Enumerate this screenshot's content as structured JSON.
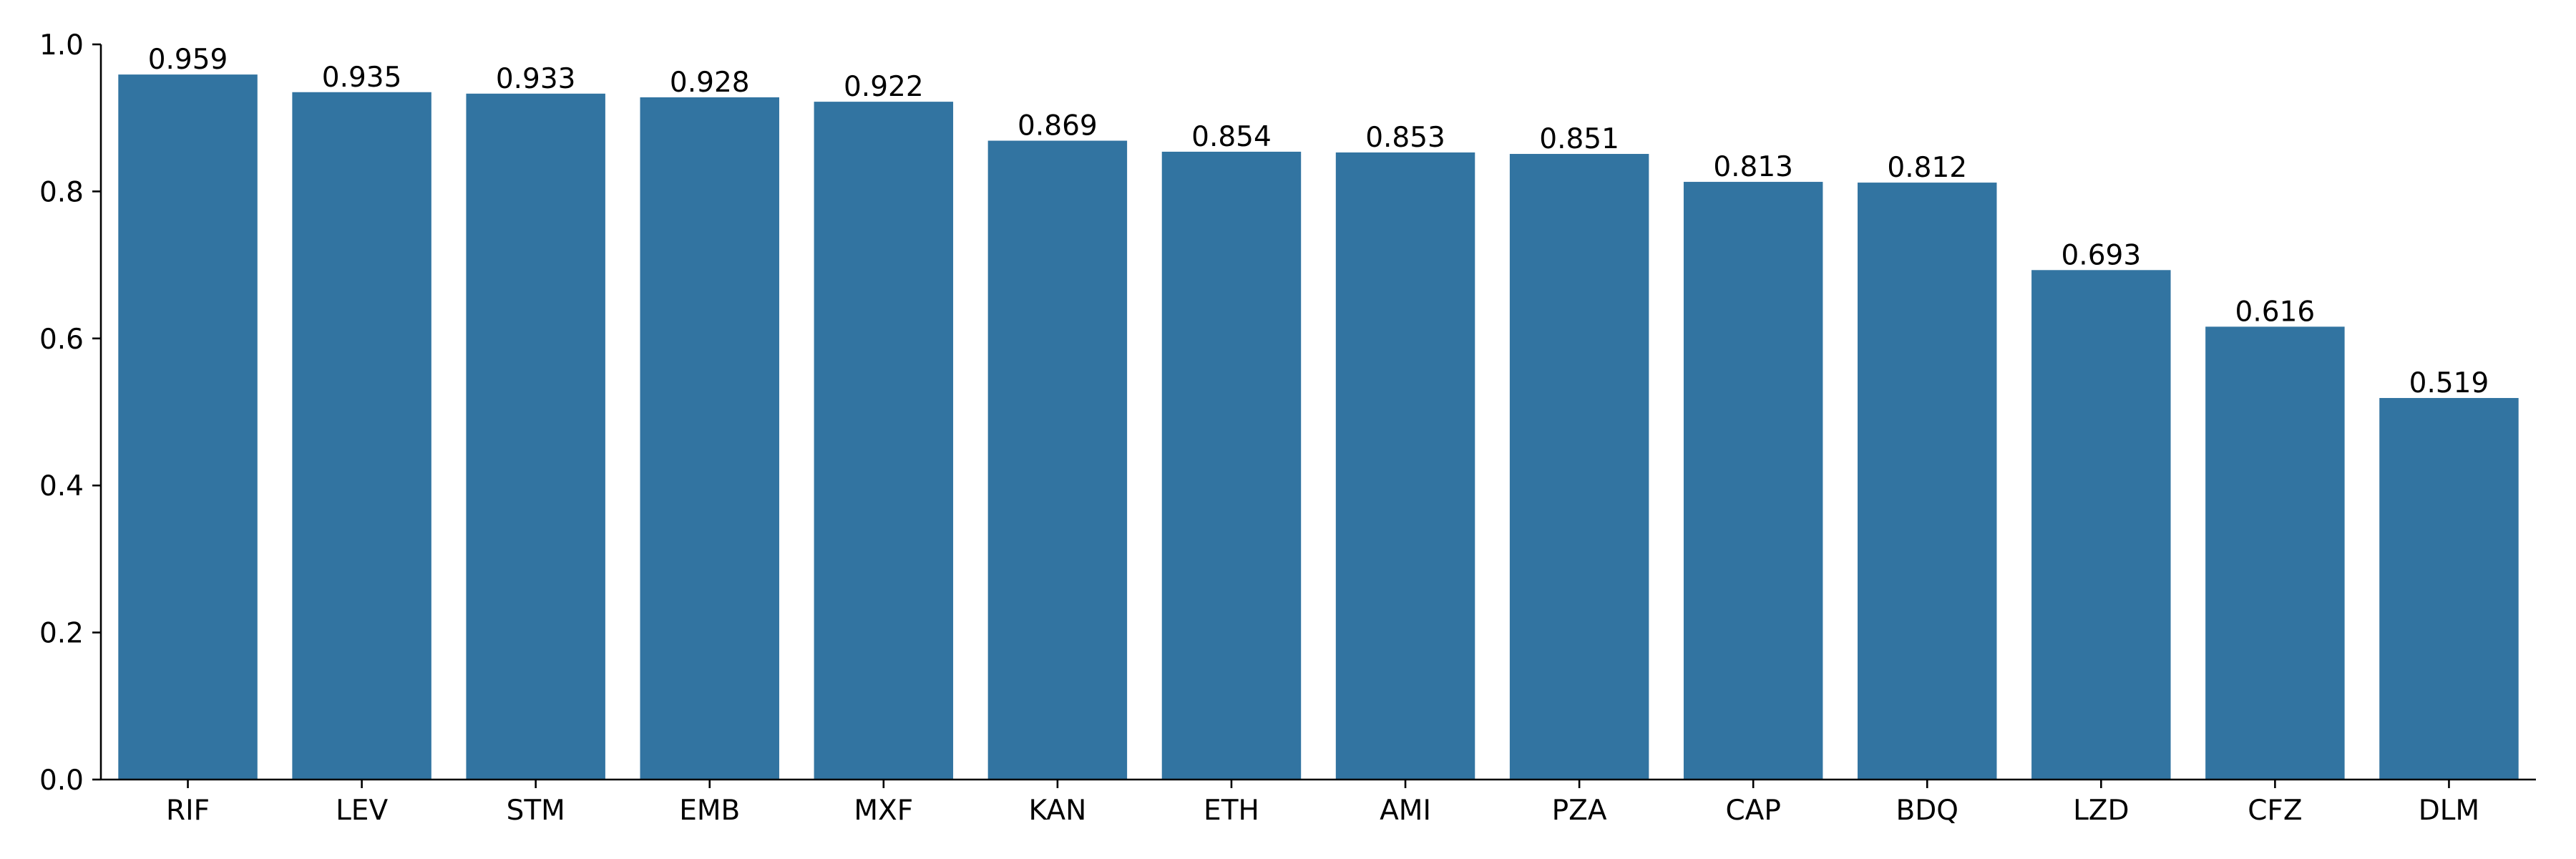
{
  "chart_data": {
    "type": "bar",
    "categories": [
      "RIF",
      "LEV",
      "STM",
      "EMB",
      "MXF",
      "KAN",
      "ETH",
      "AMI",
      "PZA",
      "CAP",
      "BDQ",
      "LZD",
      "CFZ",
      "DLM"
    ],
    "values": [
      0.959,
      0.935,
      0.933,
      0.928,
      0.922,
      0.869,
      0.854,
      0.853,
      0.851,
      0.813,
      0.812,
      0.693,
      0.616,
      0.519
    ],
    "data_labels": [
      "0.959",
      "0.935",
      "0.933",
      "0.928",
      "0.922",
      "0.869",
      "0.854",
      "0.853",
      "0.851",
      "0.813",
      "0.812",
      "0.693",
      "0.616",
      "0.519"
    ],
    "yticks": [
      "0.0",
      "0.2",
      "0.4",
      "0.6",
      "0.8",
      "1.0"
    ],
    "ylim": [
      0,
      1.0
    ],
    "title": "",
    "xlabel": "",
    "ylabel": "",
    "grid": false,
    "bar_color": "#3274a1"
  }
}
